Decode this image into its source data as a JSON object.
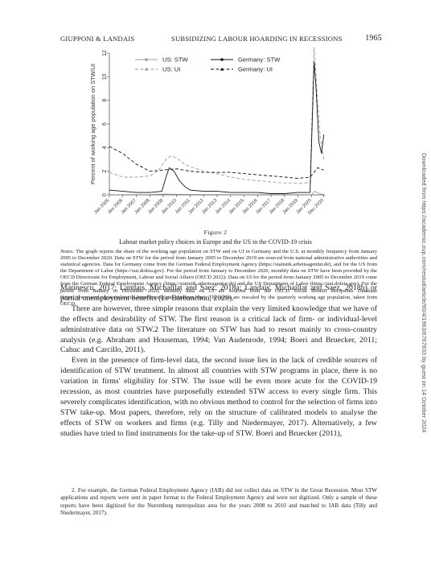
{
  "header": {
    "authors": "GIUPPONI & LANDAIS",
    "title": "SUBSIDIZING LABOUR HOARDING IN RECESSIONS",
    "page": "1965"
  },
  "side_note": "Downloaded from https://academic.oup.com/restud/article/90/4/1963/6767833 by guest on 14 October 2024",
  "figure": {
    "label": "Figure 2",
    "caption": "Labour market policy choices in Europe and the US in the COVID-19 crisis",
    "notes_label": "Notes:",
    "notes": "The graph reports the share of the working age population on STW and on UI in Germany and the U.S. at monthly frequency from January 2005 to December 2020. Data on STW for the period from January 2005 to December 2019 are sourced from national administrative authorities and statistical agencies. Data for Germany come from the German Federal Employment Agency (https://statistik.arbeitsagentur.de), and for the US from the Department of Labor (https://oui.doleta.gov). For the period from January to December 2020, monthly data on STW have been provided by the OECD Directorate for Employment, Labour and Social Affairs (OECD 2022): Data on UI for the period from January 2005 to December 2019 come from the German Federal Employment Agency (https://statistik.arbeitsagentur.de) and the US Department of Labor (https://oui.doleta.gov). For the period from January to December 2020, monthly data on UI are sourced from the OECD Social Benefit Recipients Database (https://www.oecd.org/social/social-benefit-recipients-database.htm). The series are rescaled by the quarterly working age population, taken from OECD."
  },
  "chart_data": {
    "type": "line",
    "ylabel": "Percent of working age population on STW/UI",
    "xlabel": "",
    "ylim": [
      0,
      12
    ],
    "yticks": [
      "0",
      "2",
      "4",
      "6",
      "8",
      "10",
      "12"
    ],
    "x_ticks": [
      "Jan 2005",
      "Jan 2006",
      "Jan 2007",
      "Jan 2008",
      "Jan 2009",
      "Jan 2010",
      "Jan 2011",
      "Jan 2012",
      "Jan 2013",
      "Jan 2014",
      "Jan 2015",
      "Jan 2016",
      "Jan 2017",
      "Jan 2018",
      "Jan 2019",
      "Jan 2020",
      "Dec 2020"
    ],
    "legend_position": "top",
    "grid": false,
    "series": [
      {
        "name": "US: STW",
        "color": "#9a9a9a",
        "style": "solid",
        "marker": "circle",
        "x": [
          2005.0,
          2006.0,
          2007.0,
          2008.0,
          2009.0,
          2010.0,
          2011.0,
          2012.0,
          2013.0,
          2014.0,
          2015.0,
          2016.0,
          2017.0,
          2018.0,
          2019.0,
          2020.0,
          2020.25,
          2020.4,
          2020.6,
          2020.8,
          2020.92
        ],
        "y": [
          0.02,
          0.02,
          0.02,
          0.03,
          0.06,
          0.05,
          0.04,
          0.03,
          0.03,
          0.02,
          0.02,
          0.02,
          0.02,
          0.02,
          0.02,
          0.02,
          0.3,
          0.2,
          0.1,
          0.05,
          0.04
        ]
      },
      {
        "name": "US: UI",
        "color": "#9a9a9a",
        "style": "dashed",
        "marker": "triangle",
        "x": [
          2005.0,
          2006.0,
          2007.0,
          2008.0,
          2008.6,
          2009.2,
          2009.6,
          2010.0,
          2010.6,
          2011.0,
          2012.0,
          2013.0,
          2014.0,
          2015.0,
          2016.0,
          2017.0,
          2018.0,
          2019.0,
          2019.9,
          2020.2,
          2020.3,
          2020.45,
          2020.65,
          2020.92
        ],
        "y": [
          1.9,
          1.5,
          1.5,
          1.6,
          2.0,
          3.0,
          3.3,
          3.1,
          2.6,
          2.4,
          2.0,
          1.8,
          1.5,
          1.3,
          1.2,
          1.1,
          1.0,
          1.0,
          1.0,
          12.5,
          11.0,
          8.0,
          5.0,
          3.0
        ]
      },
      {
        "name": "Germany: STW",
        "color": "#111111",
        "style": "solid",
        "marker": "circle",
        "x": [
          2005.0,
          2006.0,
          2007.0,
          2008.0,
          2008.9,
          2009.2,
          2009.45,
          2009.8,
          2010.2,
          2010.6,
          2011.0,
          2012.0,
          2013.0,
          2014.0,
          2015.0,
          2016.0,
          2017.0,
          2018.0,
          2019.0,
          2019.9,
          2020.2,
          2020.35,
          2020.55,
          2020.75,
          2020.92
        ],
        "y": [
          0.4,
          0.3,
          0.2,
          0.2,
          0.3,
          1.5,
          2.3,
          2.0,
          1.2,
          0.7,
          0.4,
          0.3,
          0.3,
          0.2,
          0.2,
          0.2,
          0.1,
          0.1,
          0.2,
          0.2,
          11.3,
          9.0,
          4.5,
          3.5,
          5.1
        ]
      },
      {
        "name": "Germany: UI",
        "color": "#111111",
        "style": "dashed",
        "marker": "triangle",
        "x": [
          2005.0,
          2006.0,
          2007.0,
          2008.0,
          2009.0,
          2010.0,
          2011.0,
          2012.0,
          2013.0,
          2014.0,
          2015.0,
          2016.0,
          2017.0,
          2018.0,
          2019.0,
          2019.9,
          2020.2,
          2020.45,
          2020.7,
          2020.92
        ],
        "y": [
          4.1,
          3.5,
          2.6,
          2.0,
          2.1,
          2.2,
          2.0,
          1.9,
          1.9,
          1.9,
          1.8,
          1.7,
          1.6,
          1.5,
          1.4,
          1.5,
          1.9,
          2.3,
          2.2,
          2.1
        ]
      }
    ]
  },
  "body": {
    "p1": "Marinescu, 2017; Landais, Michaillat and Saez, 2018a; Landais, Michaillat and Saez, 2018b) or partial unemployment benefits (Le Barbanchon, 2020).",
    "p2": "There are however, three simple reasons that explain the very limited knowledge that we have of the effects and desirability of STW. The first reason is a critical lack of firm- or individual-level administrative data on STW.2 The literature on STW has had to resort mainly to cross-country analysis (e.g. Abraham and Houseman, 1994; Van Audenrode, 1994; Boeri and Bruecker, 2011; Cahuc and Carcillo, 2011).",
    "p3": "Even in the presence of firm-level data, the second issue lies in the lack of credible sources of identification of STW treatment. In almost all countries with STW programs in place, there is no variation in firms' eligibility for STW. The issue will be even more acute for the COVID-19 recession, as most countries have purposefully extended STW access to every single firm. This severely complicates identification, with no obvious method to control for the selection of firms into STW take-up. Most papers, therefore, rely on the structure of calibrated models to analyse the effects of STW on workers and firms (e.g. Tilly and Niedermayer, 2017). Alternatively, a few studies have tried to find instruments for the take-up of STW. Boeri and Bruecker (2011),"
  },
  "footnote": "2. For example, the German Federal Employment Agency (IAB) did not collect data on STW in the Great Recession. Most STW applications and reports were sent in paper format to the Federal Employment Agency and were not digitized. Only a sample of these reports have been digitized for the Nuremberg metropolitan area for the years 2008 to 2010 and matched to IAB data (Tilly and Niedermayer, 2017)."
}
